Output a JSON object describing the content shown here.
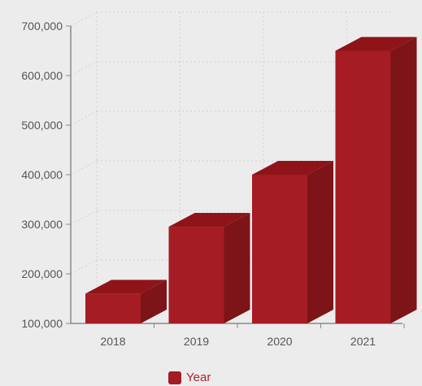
{
  "chart_data": {
    "type": "bar",
    "title": "",
    "xlabel": "",
    "ylabel": "",
    "categories": [
      "2018",
      "2019",
      "2020",
      "2021"
    ],
    "series": [
      {
        "name": "Year",
        "values": [
          160000,
          295000,
          400000,
          650000
        ]
      }
    ],
    "ylim": [
      100000,
      700000
    ],
    "yticks": [
      100000,
      200000,
      300000,
      400000,
      500000,
      600000,
      700000
    ],
    "ytick_labels": [
      "100,000",
      "200,000",
      "300,000",
      "400,000",
      "500,000",
      "600,000",
      "700,000"
    ],
    "grid": true,
    "three_d": true,
    "legend_position": "bottom"
  },
  "colors": {
    "bar_front": "#a51c24",
    "bar_top": "#8e1419",
    "bar_side": "#7d1418",
    "axis": "#8a8a8a",
    "grid": "#d2d2d2",
    "legend_text": "#b0202a"
  }
}
